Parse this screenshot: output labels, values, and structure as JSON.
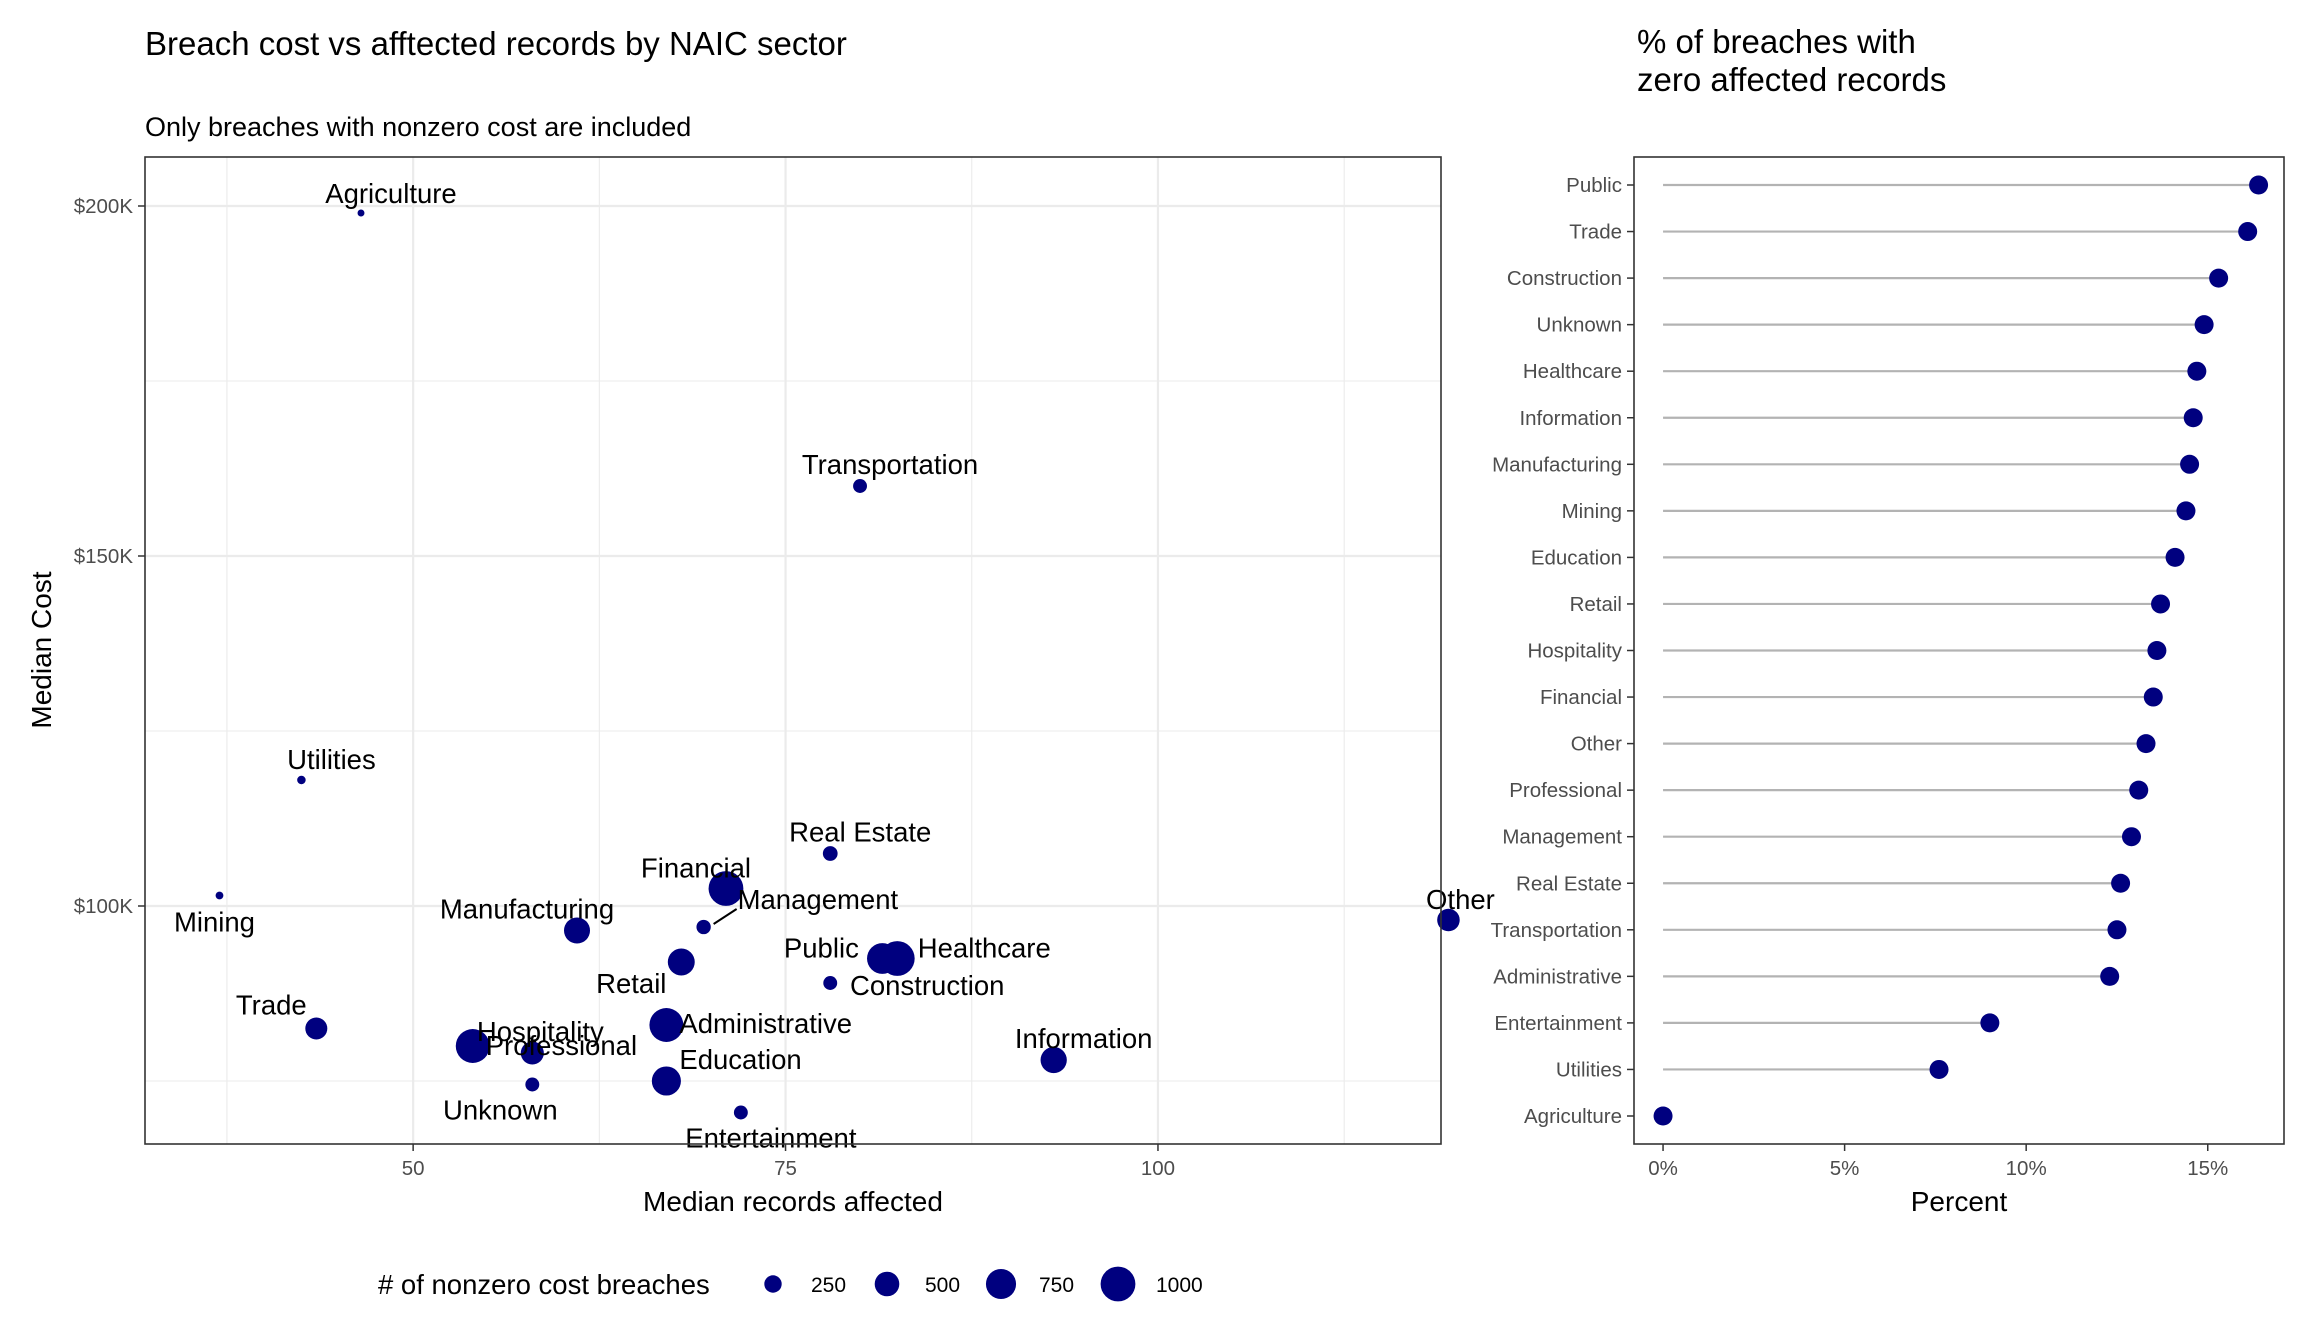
{
  "colors": {
    "point": "#00007F",
    "grid": "#EBEBEB",
    "panel_border": "#333333",
    "segment": "#B3B3B3",
    "tick_text": "#4D4D4D"
  },
  "chart_data": [
    {
      "type": "scatter",
      "title": "Breach cost vs afftected records by NAIC sector",
      "subtitle": "Only breaches with nonzero cost are included",
      "xlabel": "Median records affected",
      "ylabel": "Median Cost",
      "xlim": [
        32,
        119
      ],
      "ylim": [
        66000,
        207000
      ],
      "x_ticks": [
        50,
        75,
        100
      ],
      "y_ticks": [
        100000,
        150000,
        200000
      ],
      "y_tick_labels": [
        "$100K",
        "$150K",
        "$200K"
      ],
      "grid": true,
      "size_legend": {
        "title": "# of nonzero cost breaches",
        "values": [
          250,
          500,
          750,
          1000
        ],
        "labels": [
          "250",
          "500",
          "750",
          "1000"
        ]
      },
      "points": [
        {
          "name": "Agriculture",
          "x": 46.5,
          "y": 199000,
          "n": 40
        },
        {
          "name": "Transportation",
          "x": 80,
          "y": 160000,
          "n": 160
        },
        {
          "name": "Utilities",
          "x": 42.5,
          "y": 118000,
          "n": 60
        },
        {
          "name": "Mining",
          "x": 37,
          "y": 101500,
          "n": 50
        },
        {
          "name": "Real Estate",
          "x": 78,
          "y": 107500,
          "n": 180
        },
        {
          "name": "Financial",
          "x": 71,
          "y": 102500,
          "n": 1000
        },
        {
          "name": "Management",
          "x": 69.5,
          "y": 97000,
          "n": 170
        },
        {
          "name": "Manufacturing",
          "x": 61,
          "y": 96500,
          "n": 560
        },
        {
          "name": "Other",
          "x": 119.5,
          "y": 98000,
          "n": 420
        },
        {
          "name": "Retail",
          "x": 68,
          "y": 92000,
          "n": 600
        },
        {
          "name": "Public",
          "x": 81.5,
          "y": 92500,
          "n": 780
        },
        {
          "name": "Healthcare",
          "x": 82.5,
          "y": 92500,
          "n": 1000
        },
        {
          "name": "Construction",
          "x": 78,
          "y": 89000,
          "n": 160
        },
        {
          "name": "Trade",
          "x": 43.5,
          "y": 82500,
          "n": 400
        },
        {
          "name": "Professional",
          "x": 54,
          "y": 80000,
          "n": 950
        },
        {
          "name": "Hospitality",
          "x": 58,
          "y": 79000,
          "n": 440
        },
        {
          "name": "Administrative",
          "x": 67,
          "y": 83000,
          "n": 950
        },
        {
          "name": "Education",
          "x": 67,
          "y": 75000,
          "n": 700
        },
        {
          "name": "Information",
          "x": 93,
          "y": 78000,
          "n": 570
        },
        {
          "name": "Unknown",
          "x": 58,
          "y": 74500,
          "n": 160
        },
        {
          "name": "Entertainment",
          "x": 72,
          "y": 70500,
          "n": 160
        }
      ]
    },
    {
      "type": "lollipop",
      "title_lines": [
        "% of breaches with",
        "zero affected records"
      ],
      "xlabel": "Percent",
      "xlim": [
        -0.008,
        0.171
      ],
      "x_ticks": [
        0,
        0.05,
        0.1,
        0.15
      ],
      "x_tick_labels": [
        "0%",
        "5%",
        "10%",
        "15%"
      ],
      "grid": false,
      "categories": [
        "Public",
        "Trade",
        "Construction",
        "Unknown",
        "Healthcare",
        "Information",
        "Manufacturing",
        "Mining",
        "Education",
        "Retail",
        "Hospitality",
        "Financial",
        "Other",
        "Professional",
        "Management",
        "Real Estate",
        "Transportation",
        "Administrative",
        "Entertainment",
        "Utilities",
        "Agriculture"
      ],
      "values": [
        0.164,
        0.161,
        0.153,
        0.149,
        0.147,
        0.146,
        0.145,
        0.144,
        0.141,
        0.137,
        0.136,
        0.135,
        0.133,
        0.131,
        0.129,
        0.126,
        0.125,
        0.123,
        0.09,
        0.076,
        0.0
      ]
    }
  ]
}
